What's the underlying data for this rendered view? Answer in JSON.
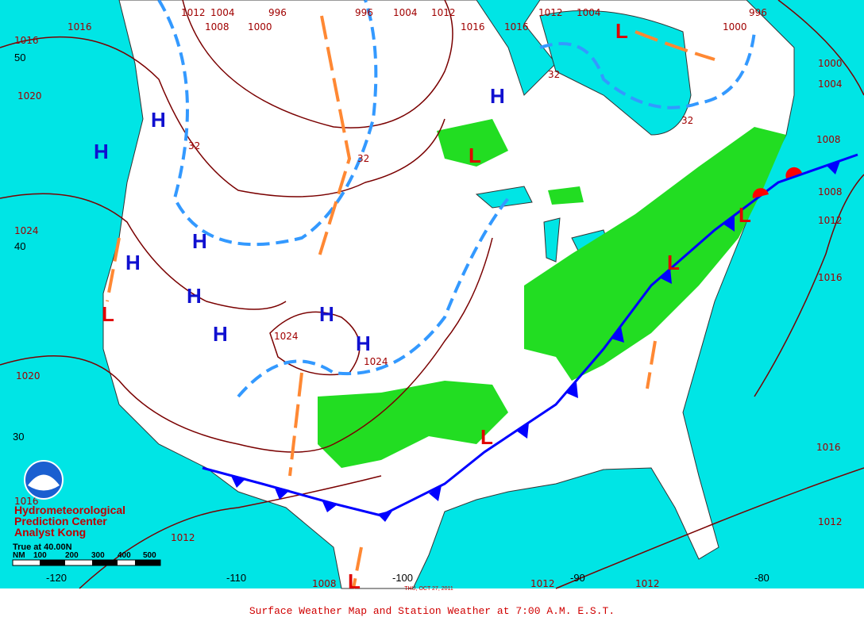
{
  "caption": "Surface Weather Map and Station Weather at 7:00 A.M. E.S.T.",
  "date": "THU, OCT 27, 2011",
  "credit": [
    "Hydrometeorological",
    "Prediction Center",
    "Analyst Kong"
  ],
  "scale": {
    "title": "True at 40.00N",
    "unit": "NM",
    "labels": [
      "100",
      "200",
      "300",
      "400",
      "500"
    ]
  },
  "latitudes": [
    "50",
    "40",
    "30"
  ],
  "longitudes": [
    "-120",
    "-110",
    "-100",
    "-90",
    "-80"
  ],
  "isobar_labels": [
    "1012",
    "1004",
    "996",
    "996",
    "1004",
    "1012",
    "1012",
    "1004",
    "996",
    "1016",
    "1008",
    "1000",
    "1000",
    "1016",
    "1016",
    "1016",
    "1020",
    "1024",
    "1020",
    "1016",
    "1012",
    "1008",
    "1012",
    "1012",
    "1012",
    "1016",
    "1016",
    "1012",
    "1008",
    "1008",
    "1004",
    "1000",
    "1024",
    "1024",
    "32",
    "32",
    "32",
    "32"
  ],
  "highs": [
    "H",
    "H",
    "H",
    "H",
    "H",
    "H",
    "H",
    "H",
    "H"
  ],
  "lows": [
    "L",
    "L",
    "L",
    "L",
    "L",
    "L",
    "L"
  ]
}
